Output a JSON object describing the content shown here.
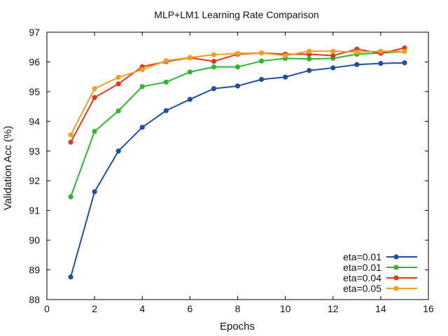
{
  "chart_data": {
    "type": "line",
    "title": "MLP+LM1 Learning Rate Comparison",
    "xlabel": "Epochs",
    "ylabel": "Validation Acc (%)",
    "xlim": [
      0,
      16
    ],
    "ylim": [
      88,
      97
    ],
    "x_ticks": [
      0,
      2,
      4,
      6,
      8,
      10,
      12,
      14,
      16
    ],
    "y_ticks": [
      88,
      89,
      90,
      91,
      92,
      93,
      94,
      95,
      96,
      97
    ],
    "grid": false,
    "legend_position": "bottom-right",
    "x": [
      1,
      2,
      3,
      4,
      5,
      6,
      7,
      8,
      9,
      10,
      11,
      12,
      13,
      14,
      15
    ],
    "series": [
      {
        "name": "eta=0.01",
        "color": "#1f4fa3",
        "values": [
          88.76,
          91.63,
          93.0,
          93.8,
          94.36,
          94.74,
          95.1,
          95.19,
          95.41,
          95.49,
          95.71,
          95.8,
          95.91,
          95.95,
          95.97
        ]
      },
      {
        "name": "eta=0.01",
        "color": "#2eb82e",
        "values": [
          91.46,
          93.66,
          94.35,
          95.17,
          95.32,
          95.66,
          95.83,
          95.83,
          96.03,
          96.12,
          96.1,
          96.12,
          96.26,
          96.3,
          96.35
        ]
      },
      {
        "name": "eta=0.04",
        "color": "#e03a1e",
        "values": [
          93.3,
          94.8,
          95.26,
          95.84,
          96.01,
          96.14,
          96.02,
          96.26,
          96.3,
          96.26,
          96.26,
          96.21,
          96.43,
          96.29,
          96.47
        ]
      },
      {
        "name": "eta=0.05",
        "color": "#f0a020",
        "values": [
          93.54,
          95.1,
          95.48,
          95.74,
          96.04,
          96.15,
          96.24,
          96.29,
          96.3,
          96.21,
          96.36,
          96.36,
          96.33,
          96.36,
          96.35
        ]
      }
    ]
  }
}
